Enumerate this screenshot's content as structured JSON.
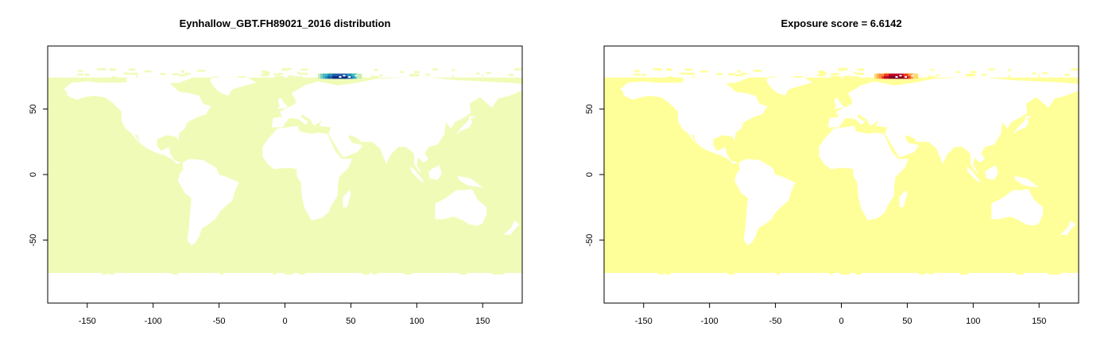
{
  "panels": [
    {
      "title": "Eynhallow_GBT.FH89021_2016 distribution",
      "palette": {
        "ocean": "#f1fbb8",
        "hotspot": [
          "#c8ecb4",
          "#7fcdbb",
          "#41b6c4",
          "#1d91c0",
          "#225ea8",
          "#0c2c84"
        ]
      }
    },
    {
      "title": "Exposure score = 6.6142",
      "palette": {
        "ocean": "#ffff99",
        "hotspot": [
          "#fed976",
          "#feb24c",
          "#fd8d3c",
          "#f03b20",
          "#bd0026",
          "#800026"
        ]
      }
    }
  ],
  "axes": {
    "x_ticks": [
      -150,
      -100,
      -50,
      0,
      50,
      100,
      150
    ],
    "y_ticks": [
      50,
      0,
      -50
    ],
    "xlim": [
      -180,
      180
    ],
    "ylim": [
      -98,
      98
    ]
  },
  "map_data": {
    "raster_lat_range": [
      -75,
      74
    ],
    "hotspot_extent": {
      "lon": [
        25,
        58
      ],
      "lat": [
        73,
        77
      ]
    }
  }
}
